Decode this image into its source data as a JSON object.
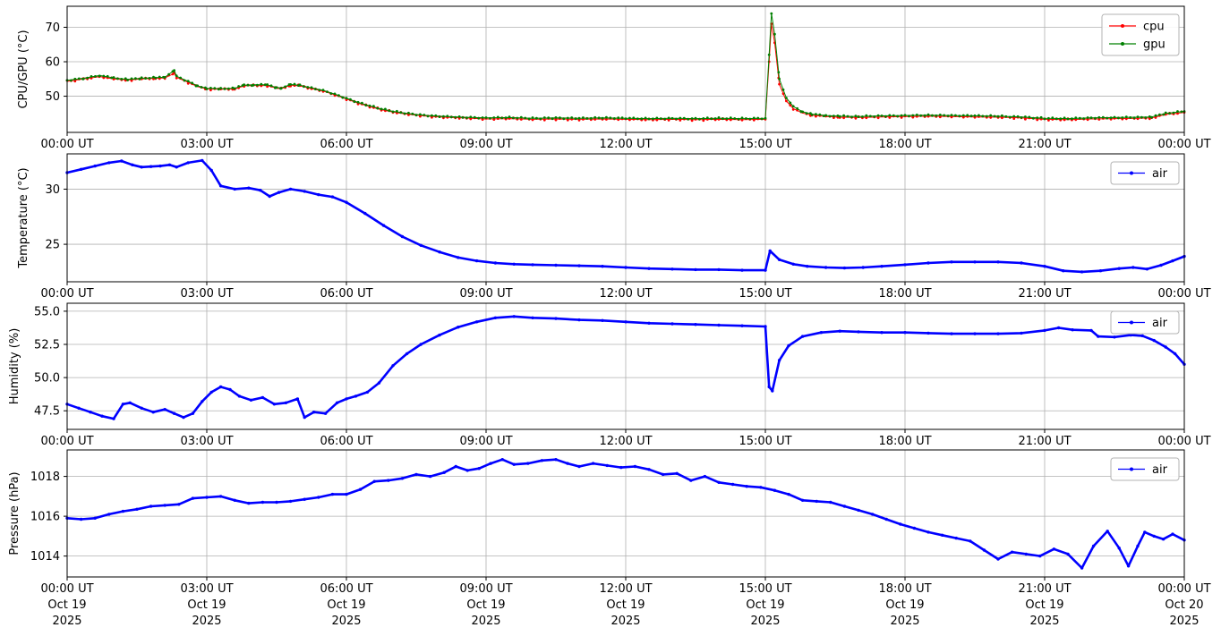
{
  "figure": {
    "background": "#ffffff",
    "grid_color": "#b0b0b0",
    "axis_color": "#000000",
    "x_axis": {
      "tick_hours": [
        0,
        3,
        6,
        9,
        12,
        15,
        18,
        21,
        24
      ],
      "tick_labels": [
        "00:00 UT",
        "03:00 UT",
        "06:00 UT",
        "09:00 UT",
        "12:00 UT",
        "15:00 UT",
        "18:00 UT",
        "21:00 UT",
        "00:00 UT"
      ],
      "date_line1": [
        "Oct 19",
        "Oct 19",
        "Oct 19",
        "Oct 19",
        "Oct 19",
        "Oct 19",
        "Oct 19",
        "Oct 19",
        "Oct 20"
      ],
      "date_line2": [
        "2025",
        "2025",
        "2025",
        "2025",
        "2025",
        "2025",
        "2025",
        "2025",
        "2025"
      ]
    }
  },
  "chart_data": [
    {
      "type": "line",
      "id": "cpu-gpu",
      "ylabel": "CPU/GPU (°C)",
      "ytick_values": [
        50,
        60,
        70
      ],
      "ytick_labels": [
        "50",
        "60",
        "70"
      ],
      "ylim": [
        39.5,
        76.1
      ],
      "xlim": [
        0,
        24
      ],
      "grid": true,
      "legend": {
        "position": "upper right",
        "entries": [
          {
            "label": "cpu",
            "color": "#ff0000"
          },
          {
            "label": "gpu",
            "color": "#008000"
          }
        ]
      },
      "series": [
        {
          "name": "cpu",
          "color": "#ff0000",
          "x": [
            0,
            0.35,
            0.7,
            1.0,
            1.3,
            1.6,
            1.9,
            2.1,
            2.3,
            2.35,
            2.6,
            2.8,
            3.0,
            3.3,
            3.6,
            3.8,
            4.0,
            4.3,
            4.5,
            4.6,
            4.8,
            5.0,
            5.25,
            5.5,
            5.75,
            6.0,
            6.25,
            6.5,
            6.75,
            7.0,
            7.25,
            7.5,
            7.75,
            8.0,
            8.5,
            9.0,
            9.5,
            10.0,
            10.5,
            11.0,
            11.5,
            12.0,
            12.5,
            13.0,
            13.5,
            14.0,
            14.5,
            15.0,
            15.08,
            15.13,
            15.2,
            15.3,
            15.45,
            15.6,
            15.8,
            16.0,
            16.3,
            16.6,
            17.0,
            17.5,
            18.0,
            18.5,
            19.0,
            19.5,
            20.0,
            20.5,
            21.0,
            21.5,
            22.0,
            22.5,
            23.0,
            23.3,
            23.6,
            24.0
          ],
          "y": [
            54.3,
            55.0,
            55.7,
            55.0,
            54.7,
            55.0,
            55.2,
            55.3,
            56.6,
            55.5,
            54.0,
            52.8,
            52.1,
            52.0,
            52.1,
            53.0,
            53.1,
            53.1,
            52.3,
            52.2,
            53.2,
            53.0,
            52.2,
            51.5,
            50.4,
            49.2,
            48.0,
            47.0,
            46.1,
            45.4,
            44.9,
            44.5,
            44.2,
            44.0,
            43.7,
            43.4,
            43.5,
            43.3,
            43.4,
            43.3,
            43.4,
            43.3,
            43.2,
            43.3,
            43.2,
            43.3,
            43.2,
            43.3,
            60.0,
            71.0,
            65.5,
            53.5,
            48.6,
            46.4,
            45.1,
            44.5,
            44.1,
            43.9,
            43.8,
            44.0,
            44.1,
            44.2,
            44.1,
            44.0,
            43.9,
            43.7,
            43.3,
            43.2,
            43.4,
            43.5,
            43.6,
            43.7,
            44.7,
            45.3
          ]
        },
        {
          "name": "gpu",
          "color": "#008000",
          "x": [
            0,
            0.35,
            0.7,
            1.0,
            1.3,
            1.6,
            1.9,
            2.1,
            2.3,
            2.35,
            2.6,
            2.8,
            3.0,
            3.3,
            3.6,
            3.8,
            4.0,
            4.3,
            4.5,
            4.6,
            4.8,
            5.0,
            5.25,
            5.5,
            5.75,
            6.0,
            6.25,
            6.5,
            6.75,
            7.0,
            7.25,
            7.5,
            7.75,
            8.0,
            8.5,
            9.0,
            9.5,
            10.0,
            10.5,
            11.0,
            11.5,
            12.0,
            12.5,
            13.0,
            13.5,
            14.0,
            14.5,
            15.0,
            15.08,
            15.13,
            15.2,
            15.3,
            15.45,
            15.6,
            15.8,
            16.0,
            16.3,
            16.6,
            17.0,
            17.5,
            18.0,
            18.5,
            19.0,
            19.5,
            20.0,
            20.5,
            21.0,
            21.5,
            22.0,
            22.5,
            23.0,
            23.3,
            23.6,
            24.0
          ],
          "y": [
            54.6,
            55.2,
            56.0,
            55.3,
            54.9,
            55.2,
            55.4,
            55.5,
            57.5,
            55.8,
            54.3,
            53.0,
            52.3,
            52.2,
            52.3,
            53.2,
            53.3,
            53.3,
            52.5,
            52.4,
            53.4,
            53.2,
            52.4,
            51.7,
            50.6,
            49.4,
            48.2,
            47.2,
            46.3,
            45.6,
            45.1,
            44.7,
            44.4,
            44.2,
            43.9,
            43.7,
            43.8,
            43.6,
            43.7,
            43.6,
            43.7,
            43.6,
            43.5,
            43.6,
            43.5,
            43.6,
            43.5,
            43.6,
            62.0,
            74.0,
            68.0,
            55.0,
            49.5,
            47.0,
            45.5,
            44.8,
            44.4,
            44.2,
            44.1,
            44.3,
            44.4,
            44.5,
            44.4,
            44.3,
            44.2,
            44.0,
            43.6,
            43.5,
            43.7,
            43.8,
            43.9,
            44.0,
            45.0,
            45.6
          ]
        }
      ]
    },
    {
      "type": "line",
      "id": "temperature",
      "ylabel": "Temperature (°C)",
      "ytick_values": [
        25,
        30
      ],
      "ytick_labels": [
        "25",
        "30"
      ],
      "ylim": [
        21.6,
        33.2
      ],
      "xlim": [
        0,
        24
      ],
      "grid": true,
      "legend": {
        "position": "upper right",
        "entries": [
          {
            "label": "air",
            "color": "#0000ff"
          }
        ]
      },
      "series": [
        {
          "name": "air",
          "color": "#0000ff",
          "x": [
            0,
            0.3,
            0.6,
            0.9,
            1.17,
            1.4,
            1.6,
            1.8,
            2.0,
            2.2,
            2.35,
            2.6,
            2.9,
            3.1,
            3.3,
            3.6,
            3.9,
            4.15,
            4.35,
            4.55,
            4.8,
            5.1,
            5.4,
            5.7,
            6.0,
            6.4,
            6.8,
            7.2,
            7.6,
            8.0,
            8.4,
            8.8,
            9.2,
            9.6,
            10.0,
            10.5,
            11.0,
            11.5,
            12.0,
            12.5,
            13.0,
            13.5,
            14.0,
            14.5,
            15.0,
            15.1,
            15.3,
            15.6,
            15.9,
            16.3,
            16.7,
            17.1,
            17.5,
            18.0,
            18.5,
            19.0,
            19.5,
            20.0,
            20.5,
            21.0,
            21.4,
            21.8,
            22.2,
            22.6,
            22.9,
            23.2,
            23.5,
            23.75,
            24.0
          ],
          "y": [
            31.5,
            31.8,
            32.1,
            32.4,
            32.55,
            32.2,
            32.0,
            32.05,
            32.1,
            32.2,
            32.0,
            32.4,
            32.6,
            31.7,
            30.3,
            30.0,
            30.1,
            29.9,
            29.35,
            29.7,
            30.0,
            29.8,
            29.5,
            29.3,
            28.8,
            27.8,
            26.7,
            25.7,
            24.9,
            24.3,
            23.8,
            23.5,
            23.3,
            23.2,
            23.15,
            23.1,
            23.05,
            23.0,
            22.9,
            22.8,
            22.75,
            22.7,
            22.7,
            22.65,
            22.65,
            24.4,
            23.6,
            23.2,
            23.0,
            22.9,
            22.85,
            22.9,
            23.0,
            23.15,
            23.3,
            23.4,
            23.4,
            23.4,
            23.3,
            23.0,
            22.6,
            22.5,
            22.6,
            22.8,
            22.9,
            22.75,
            23.1,
            23.5,
            23.9
          ]
        }
      ]
    },
    {
      "type": "line",
      "id": "humidity",
      "ylabel": "Humidity (%)",
      "ytick_values": [
        47.5,
        50.0,
        52.5,
        55.0
      ],
      "ytick_labels": [
        "47.5",
        "50.0",
        "52.5",
        "55.0"
      ],
      "ylim": [
        46.1,
        55.6
      ],
      "xlim": [
        0,
        24
      ],
      "grid": true,
      "legend": {
        "position": "upper right",
        "entries": [
          {
            "label": "air",
            "color": "#0000ff"
          }
        ]
      },
      "series": [
        {
          "name": "air",
          "color": "#0000ff",
          "x": [
            0,
            0.25,
            0.5,
            0.75,
            1.0,
            1.2,
            1.35,
            1.6,
            1.85,
            2.1,
            2.3,
            2.5,
            2.7,
            2.9,
            3.1,
            3.3,
            3.5,
            3.7,
            3.95,
            4.2,
            4.45,
            4.7,
            4.95,
            5.1,
            5.3,
            5.55,
            5.8,
            6.0,
            6.2,
            6.45,
            6.7,
            7.0,
            7.3,
            7.6,
            8.0,
            8.4,
            8.8,
            9.2,
            9.6,
            10.0,
            10.5,
            11.0,
            11.5,
            12.0,
            12.5,
            13.0,
            13.5,
            14.0,
            14.5,
            15.0,
            15.08,
            15.15,
            15.3,
            15.5,
            15.8,
            16.2,
            16.6,
            17.0,
            17.5,
            18.0,
            18.5,
            19.0,
            19.5,
            20.0,
            20.5,
            21.0,
            21.3,
            21.6,
            22.0,
            22.15,
            22.5,
            22.85,
            23.1,
            23.35,
            23.6,
            23.8,
            24.0
          ],
          "y": [
            48.0,
            47.7,
            47.4,
            47.1,
            46.9,
            48.0,
            48.1,
            47.7,
            47.4,
            47.6,
            47.3,
            47.0,
            47.3,
            48.2,
            48.9,
            49.3,
            49.1,
            48.6,
            48.3,
            48.5,
            48.0,
            48.1,
            48.4,
            47.0,
            47.4,
            47.3,
            48.1,
            48.4,
            48.6,
            48.9,
            49.6,
            50.9,
            51.8,
            52.5,
            53.2,
            53.8,
            54.2,
            54.5,
            54.6,
            54.5,
            54.45,
            54.35,
            54.3,
            54.2,
            54.1,
            54.05,
            54.0,
            53.95,
            53.9,
            53.85,
            49.3,
            49.0,
            51.3,
            52.4,
            53.1,
            53.4,
            53.5,
            53.45,
            53.4,
            53.4,
            53.35,
            53.3,
            53.3,
            53.3,
            53.35,
            53.55,
            53.75,
            53.6,
            53.55,
            53.1,
            53.05,
            53.2,
            53.15,
            52.8,
            52.3,
            51.8,
            51.0
          ]
        }
      ]
    },
    {
      "type": "line",
      "id": "pressure",
      "ylabel": "Pressure (hPa)",
      "ytick_values": [
        1014,
        1016,
        1018
      ],
      "ytick_labels": [
        "1014",
        "1016",
        "1018"
      ],
      "ylim": [
        1012.95,
        1019.33
      ],
      "xlim": [
        0,
        24
      ],
      "grid": true,
      "legend": {
        "position": "upper right",
        "entries": [
          {
            "label": "air",
            "color": "#0000ff"
          }
        ]
      },
      "series": [
        {
          "name": "air",
          "color": "#0000ff",
          "x": [
            0,
            0.3,
            0.6,
            0.9,
            1.2,
            1.5,
            1.8,
            2.1,
            2.4,
            2.7,
            3.0,
            3.3,
            3.6,
            3.9,
            4.2,
            4.5,
            4.8,
            5.1,
            5.4,
            5.7,
            6.0,
            6.3,
            6.6,
            6.9,
            7.2,
            7.5,
            7.8,
            8.1,
            8.35,
            8.6,
            8.85,
            9.1,
            9.35,
            9.6,
            9.9,
            10.2,
            10.5,
            10.75,
            11.0,
            11.3,
            11.6,
            11.9,
            12.2,
            12.5,
            12.8,
            13.1,
            13.4,
            13.7,
            14.0,
            14.3,
            14.6,
            14.9,
            15.2,
            15.5,
            15.8,
            16.1,
            16.4,
            16.7,
            17.0,
            17.3,
            17.6,
            17.9,
            18.2,
            18.5,
            18.8,
            19.1,
            19.4,
            19.7,
            20.0,
            20.3,
            20.6,
            20.9,
            21.2,
            21.5,
            21.8,
            22.05,
            22.35,
            22.6,
            22.8,
            23.0,
            23.15,
            23.35,
            23.55,
            23.75,
            24.0
          ],
          "y": [
            1015.9,
            1015.85,
            1015.9,
            1016.1,
            1016.25,
            1016.35,
            1016.5,
            1016.55,
            1016.6,
            1016.9,
            1016.95,
            1017.0,
            1016.8,
            1016.65,
            1016.7,
            1016.7,
            1016.75,
            1016.85,
            1016.95,
            1017.1,
            1017.1,
            1017.35,
            1017.75,
            1017.8,
            1017.9,
            1018.1,
            1018.0,
            1018.2,
            1018.5,
            1018.3,
            1018.4,
            1018.65,
            1018.85,
            1018.6,
            1018.65,
            1018.8,
            1018.85,
            1018.65,
            1018.5,
            1018.65,
            1018.55,
            1018.45,
            1018.5,
            1018.35,
            1018.1,
            1018.15,
            1017.8,
            1018.0,
            1017.7,
            1017.6,
            1017.5,
            1017.45,
            1017.3,
            1017.1,
            1016.8,
            1016.75,
            1016.7,
            1016.5,
            1016.3,
            1016.1,
            1015.85,
            1015.6,
            1015.4,
            1015.2,
            1015.05,
            1014.9,
            1014.75,
            1014.3,
            1013.85,
            1014.2,
            1014.1,
            1014.0,
            1014.35,
            1014.1,
            1013.4,
            1014.5,
            1015.25,
            1014.4,
            1013.5,
            1014.5,
            1015.2,
            1015.0,
            1014.85,
            1015.1,
            1014.8
          ]
        }
      ]
    }
  ]
}
